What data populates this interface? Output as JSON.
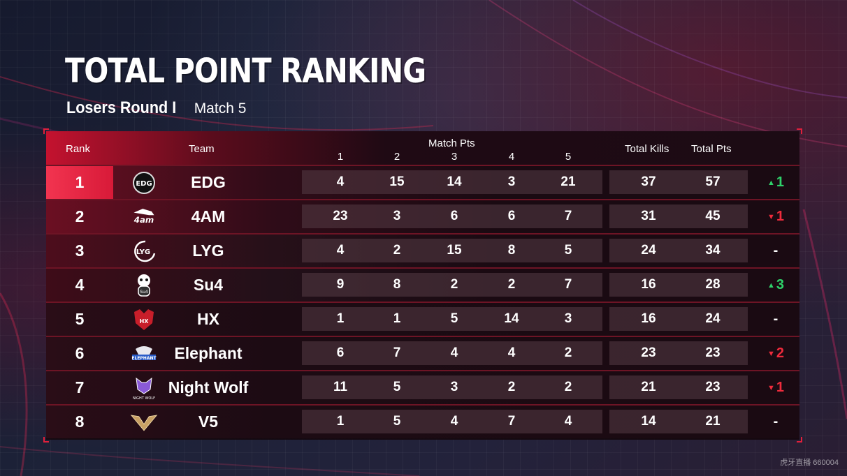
{
  "title": "TOTAL POINT RANKING",
  "subtitle": {
    "round": "Losers Round I",
    "match": "Match 5"
  },
  "table": {
    "headers": {
      "rank": "Rank",
      "team": "Team",
      "match_pts": "Match Pts",
      "matches": [
        "1",
        "2",
        "3",
        "4",
        "5"
      ],
      "total_kills": "Total Kills",
      "total_pts": "Total Pts"
    },
    "rows": [
      {
        "rank": "1",
        "team": "EDG",
        "logo": "edg-logo",
        "pts": [
          "4",
          "15",
          "14",
          "3",
          "21"
        ],
        "kills": "37",
        "total": "57",
        "change_dir": "up",
        "change_val": "1"
      },
      {
        "rank": "2",
        "team": "4AM",
        "logo": "4am-logo",
        "pts": [
          "23",
          "3",
          "6",
          "6",
          "7"
        ],
        "kills": "31",
        "total": "45",
        "change_dir": "down",
        "change_val": "1"
      },
      {
        "rank": "3",
        "team": "LYG",
        "logo": "lyg-logo",
        "pts": [
          "4",
          "2",
          "15",
          "8",
          "5"
        ],
        "kills": "24",
        "total": "34",
        "change_dir": "same",
        "change_val": "-"
      },
      {
        "rank": "4",
        "team": "Su4",
        "logo": "su4-logo",
        "pts": [
          "9",
          "8",
          "2",
          "2",
          "7"
        ],
        "kills": "16",
        "total": "28",
        "change_dir": "up",
        "change_val": "3"
      },
      {
        "rank": "5",
        "team": "HX",
        "logo": "hx-logo",
        "pts": [
          "1",
          "1",
          "5",
          "14",
          "3"
        ],
        "kills": "16",
        "total": "24",
        "change_dir": "same",
        "change_val": "-"
      },
      {
        "rank": "6",
        "team": "Elephant",
        "logo": "elephant-logo",
        "pts": [
          "6",
          "7",
          "4",
          "4",
          "2"
        ],
        "kills": "23",
        "total": "23",
        "change_dir": "down",
        "change_val": "2"
      },
      {
        "rank": "7",
        "team": "Night Wolf",
        "logo": "night-wolf-logo",
        "pts": [
          "11",
          "5",
          "3",
          "2",
          "2"
        ],
        "kills": "21",
        "total": "23",
        "change_dir": "down",
        "change_val": "1"
      },
      {
        "rank": "8",
        "team": "V5",
        "logo": "v5-logo",
        "pts": [
          "1",
          "5",
          "4",
          "7",
          "4"
        ],
        "kills": "14",
        "total": "21",
        "change_dir": "same",
        "change_val": "-"
      }
    ]
  },
  "watermark": "虎牙直播 660004",
  "colors": {
    "accent": "#e0203c",
    "up": "#2fd26a",
    "down": "#ef2b3c"
  }
}
